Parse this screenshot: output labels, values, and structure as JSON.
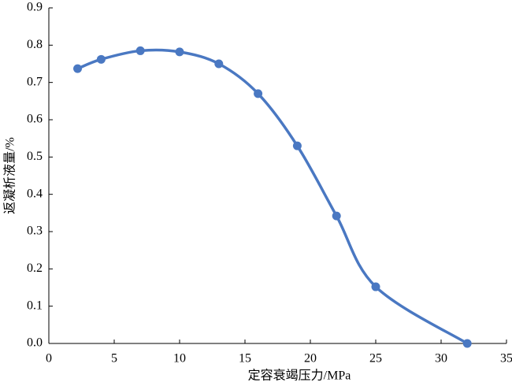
{
  "chart_data": {
    "type": "line",
    "x_label": "定容衰竭压力/MPa",
    "y_label": "返凝析液量/%",
    "series": [
      {
        "color": "#4a78c2",
        "x": [
          2.2,
          4,
          7,
          10,
          13,
          16,
          19,
          22,
          25,
          32
        ],
        "values": [
          0.737,
          0.762,
          0.785,
          0.782,
          0.75,
          0.67,
          0.53,
          0.342,
          0.152,
          0.0
        ]
      }
    ],
    "xlim": [
      0,
      35
    ],
    "xticks": [
      0,
      5,
      10,
      15,
      20,
      25,
      30,
      35
    ],
    "ylim": [
      0,
      0.9
    ],
    "yticks": [
      {
        "value": 0,
        "label": "0.0"
      },
      0.1,
      0.2,
      0.3,
      0.4,
      0.5,
      0.6,
      0.7,
      0.8,
      0.9
    ],
    "grid": false
  }
}
